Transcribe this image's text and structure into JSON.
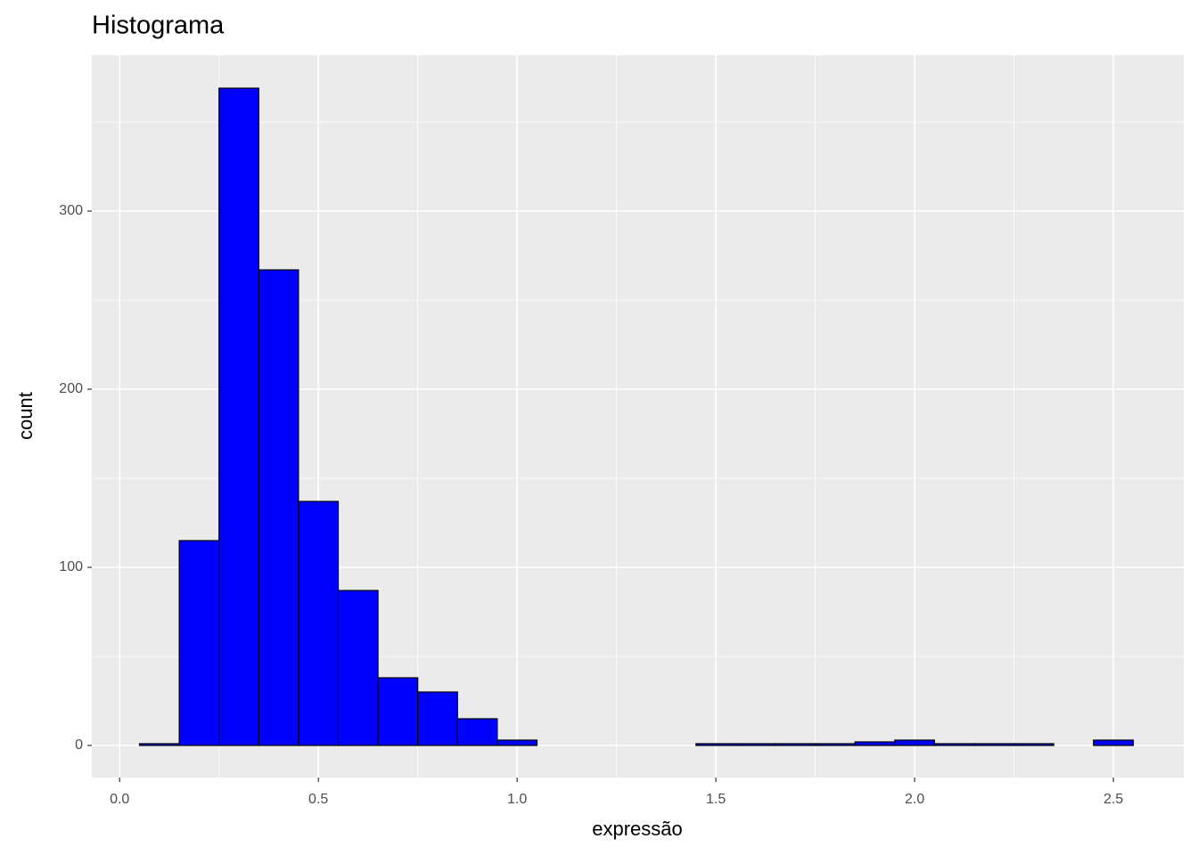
{
  "chart_data": {
    "type": "histogram",
    "title": "Histograma",
    "x_label": "expressão",
    "y_label": "count",
    "bins": [
      0.05,
      0.15,
      0.25,
      0.35,
      0.45,
      0.55,
      0.65,
      0.75,
      0.85,
      0.95,
      1.05,
      1.15,
      1.25,
      1.35,
      1.45,
      1.55,
      1.65,
      1.75,
      1.85,
      1.95,
      2.05,
      2.15,
      2.25,
      2.35,
      2.45,
      2.55
    ],
    "values": [
      1,
      115,
      369,
      267,
      137,
      87,
      38,
      30,
      15,
      3,
      0,
      0,
      0,
      0,
      1,
      1,
      1,
      1,
      2,
      3,
      1,
      1,
      1,
      0,
      3
    ],
    "color": "#0000ff",
    "edge_color": "#000000",
    "xlim": [
      -0.07,
      2.677
    ],
    "ylim": [
      -18,
      387.5
    ],
    "xticks": [
      {
        "value": 0,
        "label": "0.0"
      },
      0.5,
      {
        "value": 1,
        "label": "1.0"
      },
      1.5,
      {
        "value": 2,
        "label": "2.0"
      },
      2.5
    ],
    "yticks": [
      0,
      100,
      200,
      300
    ],
    "grid": true
  }
}
